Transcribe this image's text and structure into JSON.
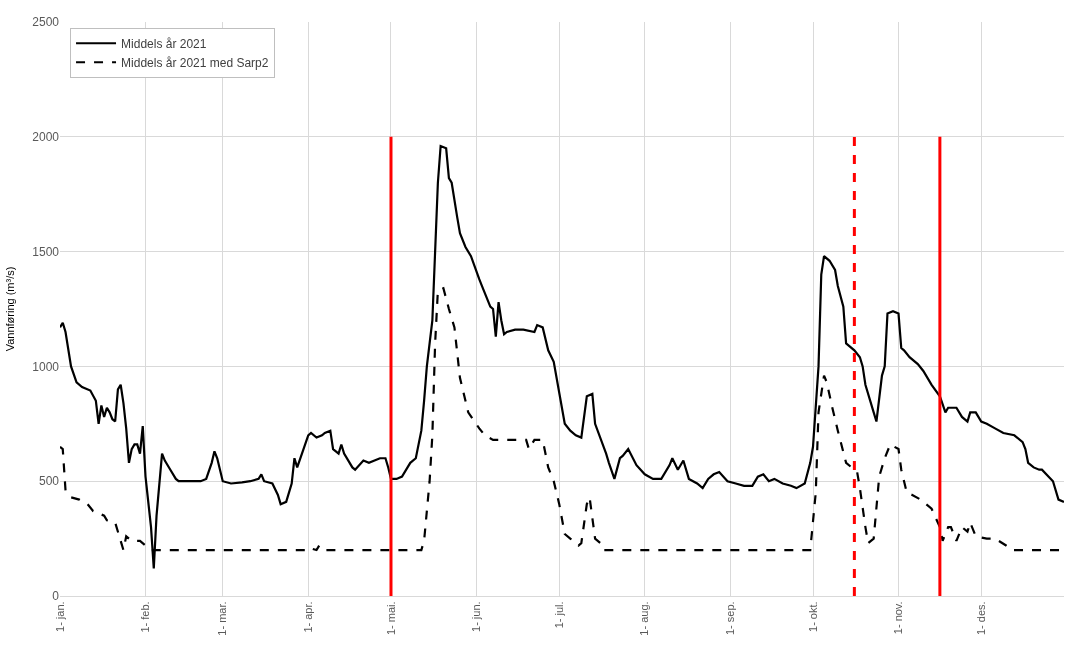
{
  "chart_data": {
    "type": "line",
    "ylabel": "Vannføring (m³/s)",
    "ylim": [
      0,
      2500
    ],
    "yticks": [
      0,
      500,
      1000,
      1500,
      2000,
      2500
    ],
    "xlim": [
      "2021-01-01",
      "2021-12-31"
    ],
    "xticks": [
      {
        "value": "2021-01-01",
        "label": "1- jan."
      },
      {
        "value": "2021-02-01",
        "label": "1- feb."
      },
      {
        "value": "2021-03-01",
        "label": "1- mar."
      },
      {
        "value": "2021-04-01",
        "label": "1- apr."
      },
      {
        "value": "2021-05-01",
        "label": "1- mai."
      },
      {
        "value": "2021-06-01",
        "label": "1- jun."
      },
      {
        "value": "2021-07-01",
        "label": "1- jul."
      },
      {
        "value": "2021-08-01",
        "label": "1- aug."
      },
      {
        "value": "2021-09-01",
        "label": "1- sep."
      },
      {
        "value": "2021-10-01",
        "label": "1- okt."
      },
      {
        "value": "2021-11-01",
        "label": "1- nov."
      },
      {
        "value": "2021-12-01",
        "label": "1- des."
      }
    ],
    "grid": true,
    "legend": "top left",
    "marker": "none",
    "series": [
      {
        "name": "Middels år 2021",
        "color": "#000000",
        "line_style": "solid",
        "x": [
          "2021-01-01",
          "2021-01-02",
          "2021-01-03",
          "2021-01-05",
          "2021-01-07",
          "2021-01-09",
          "2021-01-12",
          "2021-01-14",
          "2021-01-15",
          "2021-01-16",
          "2021-01-17",
          "2021-01-18",
          "2021-01-19",
          "2021-01-20",
          "2021-01-21",
          "2021-01-22",
          "2021-01-23",
          "2021-01-24",
          "2021-01-25",
          "2021-01-26",
          "2021-01-27",
          "2021-01-28",
          "2021-01-29",
          "2021-01-30",
          "2021-01-31",
          "2021-02-01",
          "2021-02-03",
          "2021-02-04",
          "2021-02-05",
          "2021-02-07",
          "2021-02-08",
          "2021-02-10",
          "2021-02-12",
          "2021-02-13",
          "2021-02-21",
          "2021-02-23",
          "2021-02-25",
          "2021-02-26",
          "2021-02-27",
          "2021-03-01",
          "2021-03-04",
          "2021-03-08",
          "2021-03-11",
          "2021-03-14",
          "2021-03-15",
          "2021-03-16",
          "2021-03-19",
          "2021-03-21",
          "2021-03-22",
          "2021-03-24",
          "2021-03-26",
          "2021-03-27",
          "2021-03-28",
          "2021-03-30",
          "2021-04-01",
          "2021-04-02",
          "2021-04-04",
          "2021-04-06",
          "2021-04-07",
          "2021-04-09",
          "2021-04-10",
          "2021-04-12",
          "2021-04-13",
          "2021-04-14",
          "2021-04-17",
          "2021-04-18",
          "2021-04-21",
          "2021-04-23",
          "2021-04-27",
          "2021-04-29",
          "2021-04-30",
          "2021-05-01",
          "2021-05-03",
          "2021-05-05",
          "2021-05-07",
          "2021-05-08",
          "2021-05-10",
          "2021-05-12",
          "2021-05-13",
          "2021-05-14",
          "2021-05-15",
          "2021-05-16",
          "2021-05-17",
          "2021-05-18",
          "2021-05-19",
          "2021-05-21",
          "2021-05-22",
          "2021-05-23",
          "2021-05-25",
          "2021-05-26",
          "2021-05-28",
          "2021-05-30",
          "2021-06-02",
          "2021-06-03",
          "2021-06-06",
          "2021-06-07",
          "2021-06-08",
          "2021-06-09",
          "2021-06-10",
          "2021-06-11",
          "2021-06-12",
          "2021-06-15",
          "2021-06-18",
          "2021-06-22",
          "2021-06-23",
          "2021-06-25",
          "2021-06-27",
          "2021-06-29",
          "2021-07-03",
          "2021-07-05",
          "2021-07-07",
          "2021-07-09",
          "2021-07-11",
          "2021-07-13",
          "2021-07-14",
          "2021-07-18",
          "2021-07-19",
          "2021-07-21",
          "2021-07-23",
          "2021-07-24",
          "2021-07-26",
          "2021-07-29",
          "2021-08-01",
          "2021-08-04",
          "2021-08-07",
          "2021-08-10",
          "2021-08-11",
          "2021-08-13",
          "2021-08-15",
          "2021-08-17",
          "2021-08-20",
          "2021-08-22",
          "2021-08-24",
          "2021-08-26",
          "2021-08-28",
          "2021-08-31",
          "2021-09-03",
          "2021-09-06",
          "2021-09-09",
          "2021-09-11",
          "2021-09-13",
          "2021-09-15",
          "2021-09-17",
          "2021-09-20",
          "2021-09-23",
          "2021-09-25",
          "2021-09-28",
          "2021-09-30",
          "2021-10-01",
          "2021-10-03",
          "2021-10-04",
          "2021-10-05",
          "2021-10-07",
          "2021-10-09",
          "2021-10-10",
          "2021-10-12",
          "2021-10-13",
          "2021-10-16",
          "2021-10-18",
          "2021-10-19",
          "2021-10-20",
          "2021-10-23",
          "2021-10-24",
          "2021-10-26",
          "2021-10-27",
          "2021-10-28",
          "2021-10-30",
          "2021-11-01",
          "2021-11-02",
          "2021-11-03",
          "2021-11-05",
          "2021-11-08",
          "2021-11-10",
          "2021-11-13",
          "2021-11-16",
          "2021-11-18",
          "2021-11-19",
          "2021-11-22",
          "2021-11-24",
          "2021-11-26",
          "2021-11-27",
          "2021-11-29",
          "2021-12-01",
          "2021-12-03",
          "2021-12-06",
          "2021-12-09",
          "2021-12-13",
          "2021-12-16",
          "2021-12-17",
          "2021-12-18",
          "2021-12-20",
          "2021-12-22",
          "2021-12-23",
          "2021-12-27",
          "2021-12-29",
          "2021-12-31"
        ],
        "values": [
          1170,
          1190,
          1150,
          1000,
          930,
          910,
          895,
          850,
          750,
          830,
          780,
          820,
          800,
          770,
          760,
          900,
          920,
          840,
          730,
          580,
          640,
          660,
          660,
          620,
          740,
          520,
          300,
          120,
          350,
          620,
          590,
          550,
          510,
          500,
          500,
          510,
          580,
          630,
          600,
          500,
          490,
          495,
          500,
          510,
          530,
          500,
          490,
          440,
          400,
          410,
          490,
          600,
          560,
          630,
          700,
          710,
          690,
          700,
          710,
          720,
          640,
          620,
          660,
          620,
          560,
          550,
          590,
          580,
          600,
          600,
          560,
          510,
          510,
          520,
          560,
          580,
          600,
          720,
          850,
          1000,
          1100,
          1200,
          1500,
          1800,
          1960,
          1950,
          1820,
          1800,
          1650,
          1580,
          1520,
          1480,
          1380,
          1350,
          1260,
          1250,
          1130,
          1280,
          1200,
          1140,
          1150,
          1160,
          1160,
          1150,
          1180,
          1170,
          1070,
          1020,
          750,
          720,
          700,
          690,
          870,
          880,
          750,
          620,
          580,
          510,
          600,
          610,
          640,
          570,
          530,
          510,
          510,
          570,
          600,
          550,
          590,
          510,
          490,
          470,
          510,
          530,
          540,
          500,
          490,
          480,
          480,
          520,
          530,
          500,
          510,
          490,
          480,
          470,
          490,
          580,
          650,
          1000,
          1400,
          1480,
          1460,
          1420,
          1350,
          1260,
          1100,
          1070,
          1040,
          1000,
          920,
          800,
          760,
          960,
          1000,
          1230,
          1240,
          1230,
          1080,
          1070,
          1040,
          1010,
          980,
          920,
          870,
          800,
          820,
          820,
          780,
          760,
          800,
          800,
          760,
          750,
          730,
          710,
          700,
          670,
          640,
          580,
          560,
          550,
          550,
          500,
          420,
          410
        ]
      },
      {
        "name": "Middels år 2021 med Sarp2",
        "color": "#000000",
        "line_style": "dashed",
        "x": [
          "2021-01-01",
          "2021-01-02",
          "2021-01-03",
          "2021-01-05",
          "2021-01-08",
          "2021-01-11",
          "2021-01-13",
          "2021-01-15",
          "2021-01-17",
          "2021-01-18",
          "2021-01-21",
          "2021-01-23",
          "2021-01-24",
          "2021-01-25",
          "2021-01-27",
          "2021-01-30",
          "2021-02-01",
          "2021-02-03",
          "2021-03-31",
          "2021-04-01",
          "2021-04-04",
          "2021-04-05",
          "2021-04-07",
          "2021-05-12",
          "2021-05-13",
          "2021-05-15",
          "2021-05-16",
          "2021-05-17",
          "2021-05-18",
          "2021-05-20",
          "2021-05-22",
          "2021-05-24",
          "2021-05-26",
          "2021-05-27",
          "2021-05-29",
          "2021-06-02",
          "2021-06-04",
          "2021-06-07",
          "2021-06-19",
          "2021-06-20",
          "2021-06-22",
          "2021-06-25",
          "2021-06-27",
          "2021-06-29",
          "2021-07-01",
          "2021-07-03",
          "2021-07-05",
          "2021-07-08",
          "2021-07-09",
          "2021-07-11",
          "2021-07-12",
          "2021-07-14",
          "2021-07-16",
          "2021-07-17",
          "2021-09-30",
          "2021-10-02",
          "2021-10-03",
          "2021-10-05",
          "2021-10-06",
          "2021-10-08",
          "2021-10-10",
          "2021-10-13",
          "2021-10-17",
          "2021-10-18",
          "2021-10-20",
          "2021-10-21",
          "2021-10-23",
          "2021-10-25",
          "2021-10-27",
          "2021-10-29",
          "2021-11-01",
          "2021-11-02",
          "2021-11-04",
          "2021-11-06",
          "2021-11-09",
          "2021-11-13",
          "2021-11-16",
          "2021-11-17",
          "2021-11-19",
          "2021-11-20",
          "2021-11-22",
          "2021-11-24",
          "2021-11-26",
          "2021-11-27",
          "2021-11-29",
          "2021-12-03",
          "2021-12-06",
          "2021-12-10",
          "2021-12-12",
          "2021-12-31"
        ],
        "values": [
          650,
          640,
          460,
          430,
          420,
          400,
          370,
          360,
          350,
          330,
          320,
          240,
          200,
          260,
          240,
          240,
          220,
          200,
          200,
          210,
          200,
          220,
          200,
          200,
          240,
          500,
          700,
          1100,
          1330,
          1340,
          1250,
          1170,
          950,
          900,
          800,
          730,
          700,
          680,
          680,
          640,
          680,
          680,
          560,
          500,
          400,
          270,
          250,
          220,
          230,
          400,
          430,
          250,
          230,
          200,
          200,
          450,
          800,
          960,
          930,
          820,
          720,
          580,
          540,
          470,
          300,
          230,
          250,
          520,
          600,
          660,
          640,
          550,
          450,
          440,
          420,
          380,
          300,
          240,
          300,
          300,
          240,
          300,
          280,
          320,
          260,
          250,
          250,
          220,
          200,
          200
        ]
      }
    ],
    "ref_lines": [
      {
        "axis": "x",
        "value": "2021-05-01",
        "color": "#ff0000",
        "line_style": "solid"
      },
      {
        "axis": "x",
        "value": "2021-10-16",
        "color": "#ff0000",
        "line_style": "dashed"
      },
      {
        "axis": "x",
        "value": "2021-11-16",
        "color": "#ff0000",
        "line_style": "solid"
      }
    ]
  }
}
